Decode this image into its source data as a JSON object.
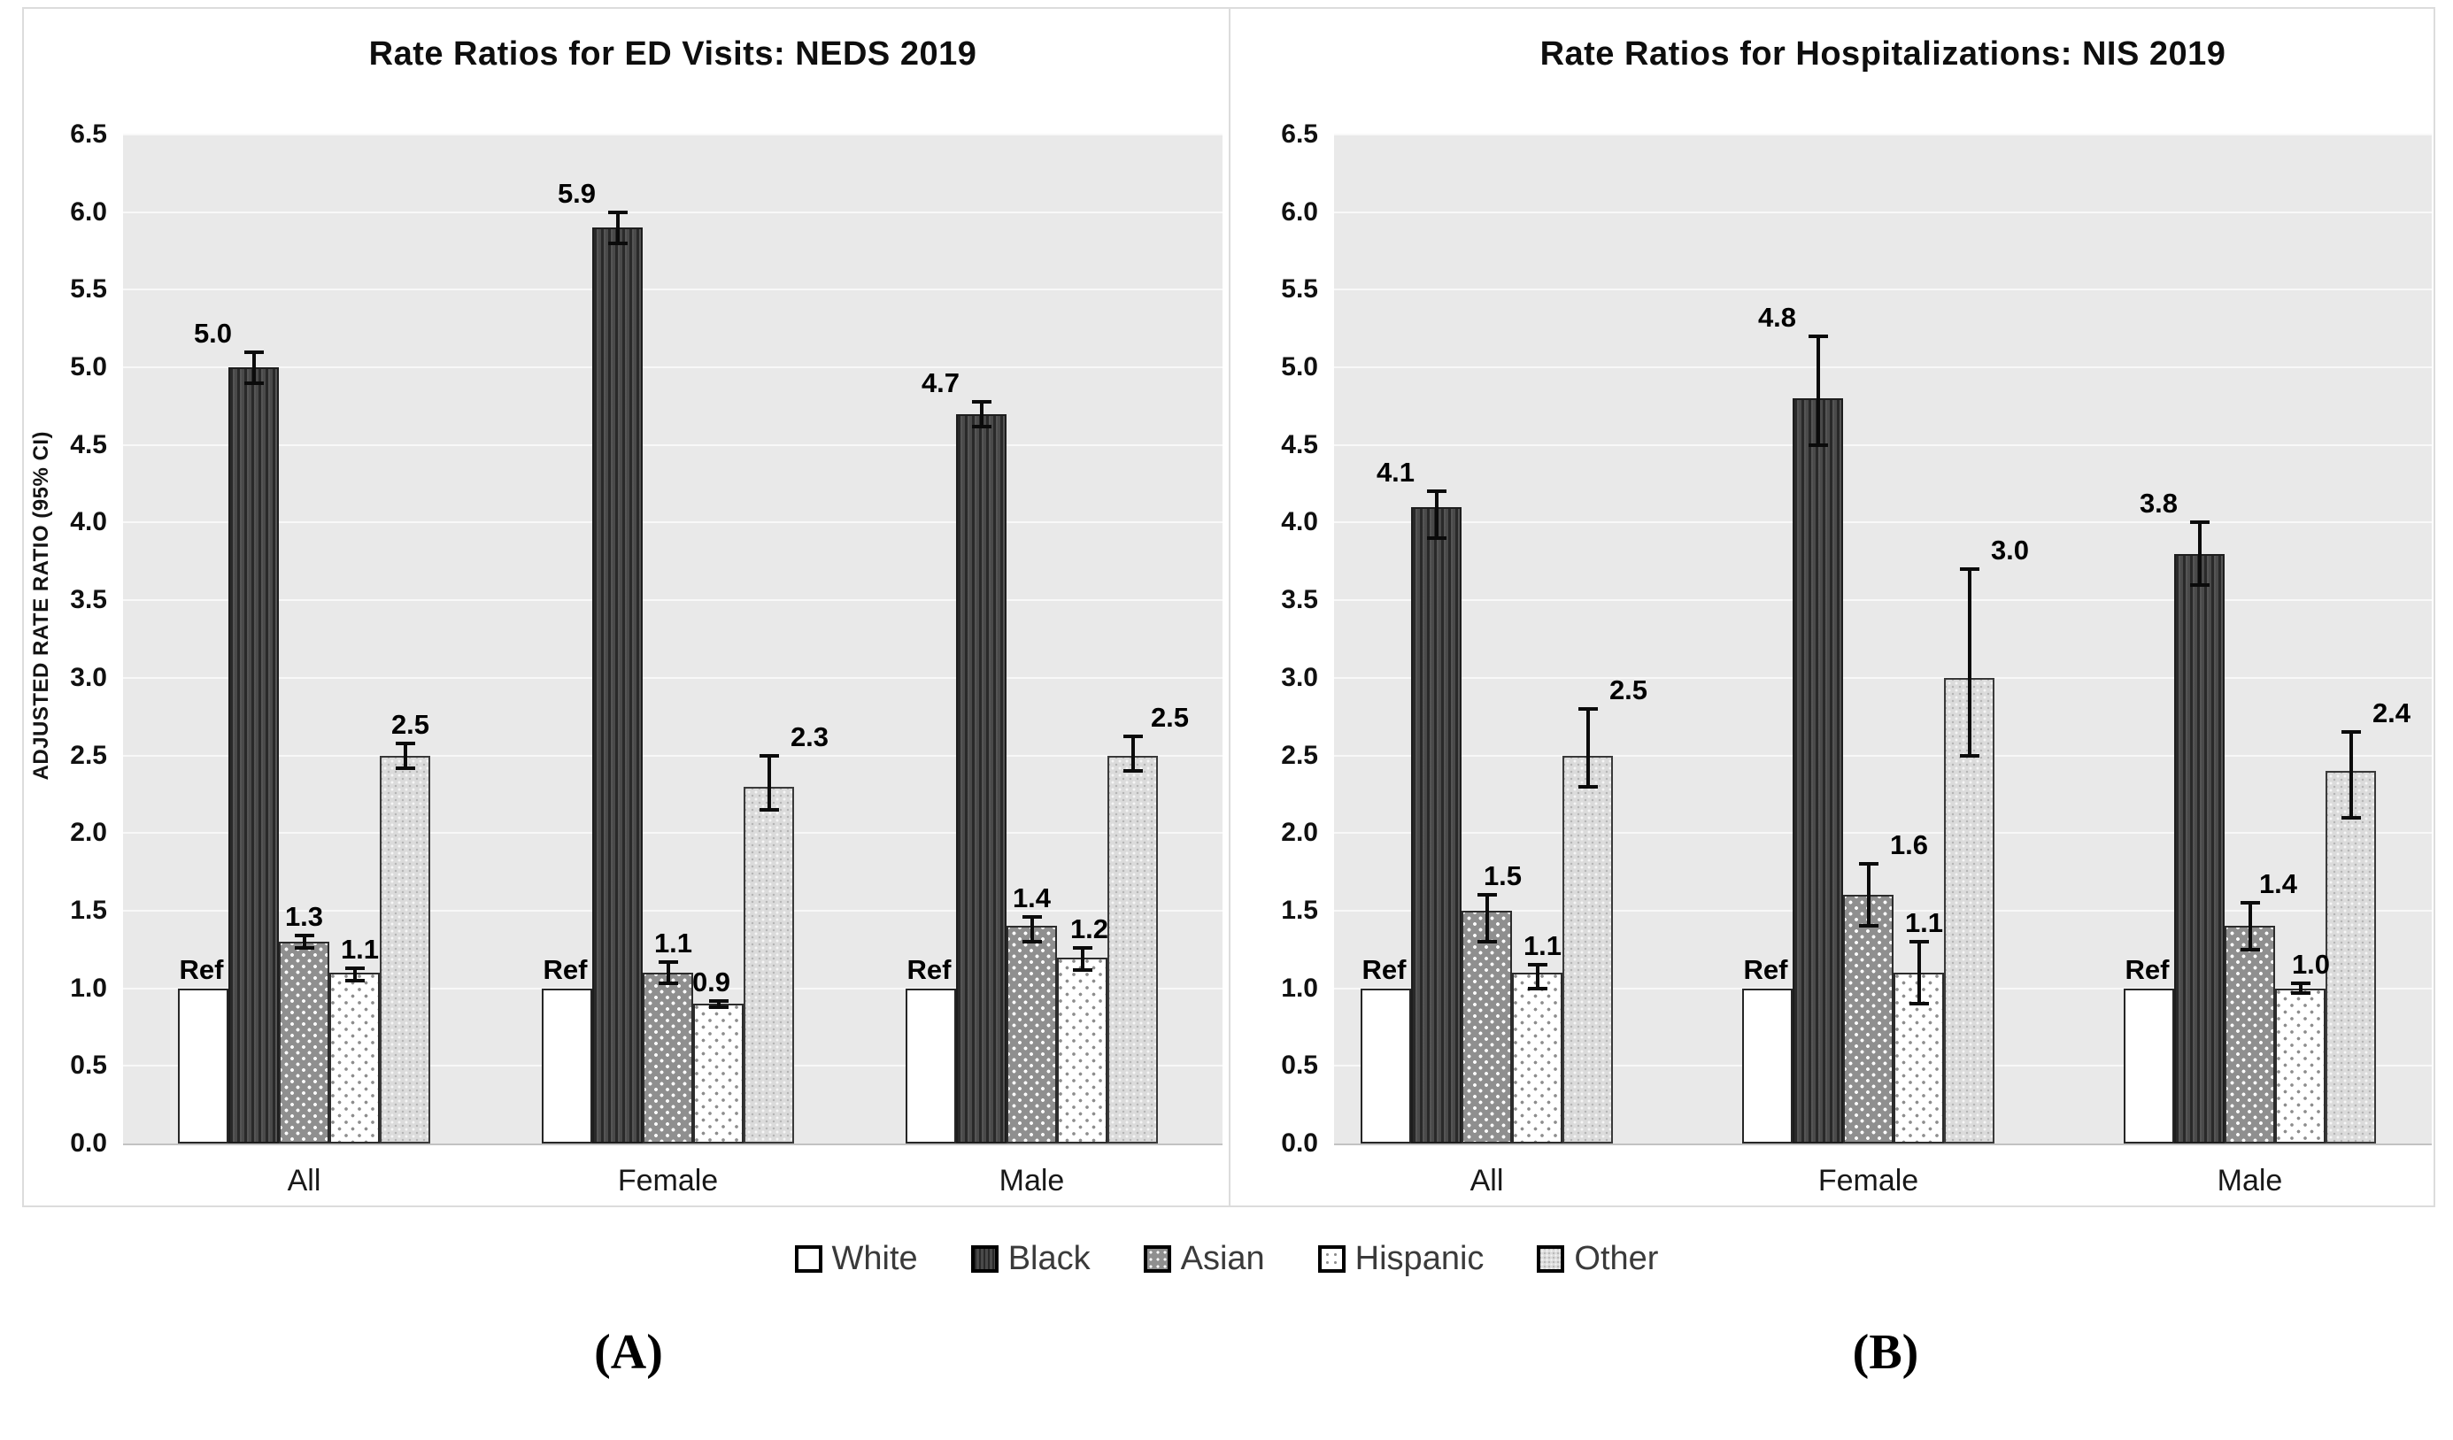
{
  "figure": {
    "legend": [
      {
        "label": "White",
        "pattern": "white"
      },
      {
        "label": "Black",
        "pattern": "black"
      },
      {
        "label": "Asian",
        "pattern": "asian"
      },
      {
        "label": "Hispanic",
        "pattern": "hispanic"
      },
      {
        "label": "Other",
        "pattern": "other"
      }
    ]
  },
  "colors": {
    "plot_background": "#e9e9e9",
    "gridline": "#f8f8f8",
    "bar_dark": "#4a4a4a",
    "bar_medium_gray": "#8f8f8f",
    "bar_light_gray": "#dbdbdb",
    "bar_white": "#ffffff",
    "error_bar": "#0b0b0b",
    "text": "#111111",
    "legend_text": "#3a3a3a",
    "panel_border": "#dcdcdc"
  },
  "chart_data": [
    {
      "type": "bar",
      "title": "Rate Ratios for ED Visits: NEDS 2019",
      "panel_label": "(A)",
      "ylabel": "ADJUSTED RATE RATIO (95% CI)",
      "ylim": [
        0.0,
        6.5
      ],
      "ytick_step": 0.5,
      "grid": true,
      "legend_position": "bottom",
      "categories": [
        "All",
        "Female",
        "Male"
      ],
      "series": [
        {
          "name": "White",
          "pattern": "white",
          "values": [
            1.0,
            1.0,
            1.0
          ],
          "labels": [
            "Ref",
            "Ref",
            "Ref"
          ],
          "ci_low": null,
          "ci_high": null
        },
        {
          "name": "Black",
          "pattern": "black",
          "values": [
            5.0,
            5.9,
            4.7
          ],
          "labels": [
            "5.0",
            "5.9",
            "4.7"
          ],
          "ci_low": [
            4.9,
            5.8,
            4.62
          ],
          "ci_high": [
            5.1,
            6.0,
            4.78
          ]
        },
        {
          "name": "Asian",
          "pattern": "asian",
          "values": [
            1.3,
            1.1,
            1.4
          ],
          "labels": [
            "1.3",
            "1.1",
            "1.4"
          ],
          "ci_low": [
            1.26,
            1.03,
            1.3
          ],
          "ci_high": [
            1.34,
            1.17,
            1.46
          ]
        },
        {
          "name": "Hispanic",
          "pattern": "hispanic",
          "values": [
            1.1,
            0.9,
            1.2
          ],
          "labels": [
            "1.1",
            "0.9",
            "1.2"
          ],
          "ci_low": [
            1.05,
            0.88,
            1.12
          ],
          "ci_high": [
            1.13,
            0.92,
            1.26
          ]
        },
        {
          "name": "Other",
          "pattern": "other",
          "values": [
            2.5,
            2.3,
            2.5
          ],
          "labels": [
            "2.5",
            "2.3",
            "2.5"
          ],
          "ci_low": [
            2.42,
            2.15,
            2.4
          ],
          "ci_high": [
            2.58,
            2.5,
            2.62
          ]
        }
      ]
    },
    {
      "type": "bar",
      "title": "Rate Ratios for Hospitalizations: NIS 2019",
      "panel_label": "(B)",
      "ylabel": "",
      "ylim": [
        0.0,
        6.5
      ],
      "ytick_step": 0.5,
      "grid": true,
      "legend_position": "bottom",
      "categories": [
        "All",
        "Female",
        "Male"
      ],
      "series": [
        {
          "name": "White",
          "pattern": "white",
          "values": [
            1.0,
            1.0,
            1.0
          ],
          "labels": [
            "Ref",
            "Ref",
            "Ref"
          ],
          "ci_low": null,
          "ci_high": null
        },
        {
          "name": "Black",
          "pattern": "black",
          "values": [
            4.1,
            4.8,
            3.8
          ],
          "labels": [
            "4.1",
            "4.8",
            "3.8"
          ],
          "ci_low": [
            3.9,
            4.5,
            3.6
          ],
          "ci_high": [
            4.2,
            5.2,
            4.0
          ]
        },
        {
          "name": "Asian",
          "pattern": "asian",
          "values": [
            1.5,
            1.6,
            1.4
          ],
          "labels": [
            "1.5",
            "1.6",
            "1.4"
          ],
          "ci_low": [
            1.3,
            1.4,
            1.25
          ],
          "ci_high": [
            1.6,
            1.8,
            1.55
          ]
        },
        {
          "name": "Hispanic",
          "pattern": "hispanic",
          "values": [
            1.1,
            1.1,
            1.0
          ],
          "labels": [
            "1.1",
            "1.1",
            "1.0"
          ],
          "ci_low": [
            1.0,
            0.9,
            0.97
          ],
          "ci_high": [
            1.15,
            1.3,
            1.03
          ]
        },
        {
          "name": "Other",
          "pattern": "other",
          "values": [
            2.5,
            3.0,
            2.4
          ],
          "labels": [
            "2.5",
            "3.0",
            "2.4"
          ],
          "ci_low": [
            2.3,
            2.5,
            2.1
          ],
          "ci_high": [
            2.8,
            3.7,
            2.65
          ]
        }
      ]
    }
  ]
}
